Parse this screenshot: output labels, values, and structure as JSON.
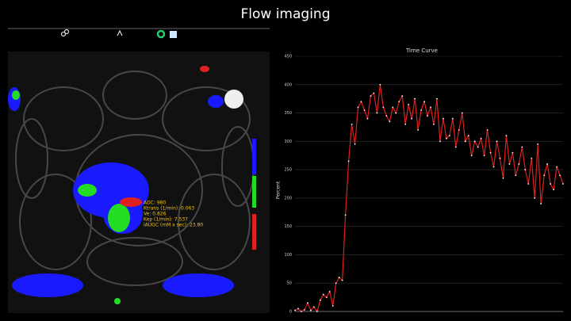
{
  "header": {
    "title": "Flow imaging"
  },
  "image": {
    "annotations": [
      "ADC: 980",
      "Ktrans (1/min): 0.063",
      "Ve: 0.826",
      "Kep (1/min): 7.537",
      "iAUGC (mM x sec): 23.80"
    ]
  },
  "chart_data": {
    "type": "line",
    "title": "Time Curve",
    "y_label": "Percent",
    "series": [
      {
        "name": "Time curve",
        "color": "#e0201a",
        "values": [
          2,
          5,
          0,
          3,
          15,
          2,
          8,
          0,
          20,
          30,
          25,
          35,
          10,
          50,
          60,
          55,
          170,
          265,
          330,
          295,
          360,
          370,
          355,
          340,
          380,
          385,
          350,
          400,
          360,
          345,
          335,
          360,
          350,
          370,
          380,
          330,
          365,
          340,
          375,
          320,
          355,
          370,
          345,
          360,
          330,
          375,
          300,
          340,
          305,
          310,
          340,
          290,
          320,
          350,
          300,
          310,
          275,
          300,
          290,
          305,
          275,
          320,
          280,
          255,
          300,
          270,
          235,
          310,
          260,
          280,
          240,
          260,
          290,
          250,
          225,
          270,
          200,
          295,
          190,
          240,
          260,
          225,
          215,
          255,
          240,
          225
        ]
      }
    ],
    "ylim": [
      0,
      450
    ],
    "yticks": [
      0,
      50,
      100,
      150,
      200,
      250,
      300,
      350,
      400,
      450
    ],
    "grid": true
  }
}
